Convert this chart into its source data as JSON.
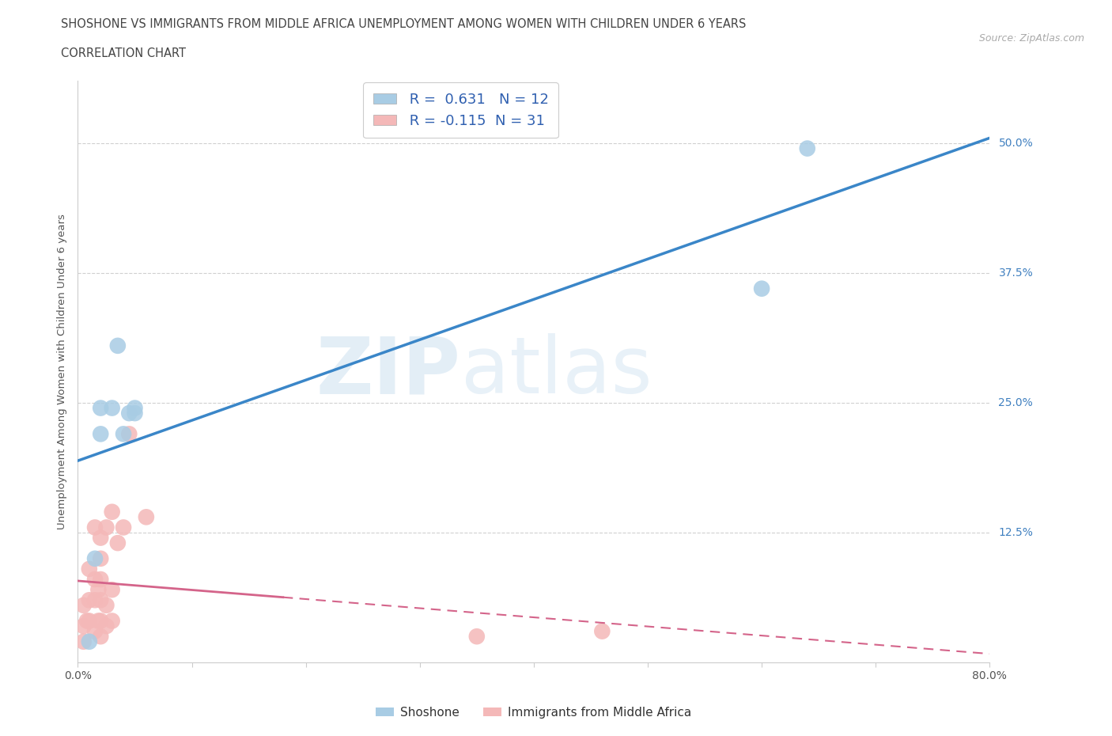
{
  "title_line1": "SHOSHONE VS IMMIGRANTS FROM MIDDLE AFRICA UNEMPLOYMENT AMONG WOMEN WITH CHILDREN UNDER 6 YEARS",
  "title_line2": "CORRELATION CHART",
  "source": "Source: ZipAtlas.com",
  "ylabel": "Unemployment Among Women with Children Under 6 years",
  "xlim": [
    0.0,
    0.8
  ],
  "ylim": [
    0.0,
    0.56
  ],
  "yticks": [
    0.0,
    0.125,
    0.25,
    0.375,
    0.5
  ],
  "ytick_labels": [
    "",
    "12.5%",
    "25.0%",
    "37.5%",
    "50.0%"
  ],
  "xticks": [
    0.0,
    0.1,
    0.2,
    0.3,
    0.4,
    0.5,
    0.6,
    0.7,
    0.8
  ],
  "xtick_labels": [
    "0.0%",
    "",
    "",
    "",
    "",
    "",
    "",
    "",
    "80.0%"
  ],
  "watermark_zip": "ZIP",
  "watermark_atlas": "atlas",
  "shoshone_color": "#a8cce4",
  "immigrants_color": "#f4b8b8",
  "shoshone_R": 0.631,
  "shoshone_N": 12,
  "immigrants_R": -0.115,
  "immigrants_N": 31,
  "shoshone_line_color": "#3a86c8",
  "immigrants_line_color": "#d4648a",
  "shoshone_points_x": [
    0.01,
    0.015,
    0.02,
    0.02,
    0.03,
    0.035,
    0.04,
    0.045,
    0.05,
    0.05,
    0.6,
    0.64
  ],
  "shoshone_points_y": [
    0.02,
    0.1,
    0.22,
    0.245,
    0.245,
    0.305,
    0.22,
    0.24,
    0.24,
    0.245,
    0.36,
    0.495
  ],
  "immigrants_points_x": [
    0.005,
    0.005,
    0.005,
    0.008,
    0.01,
    0.01,
    0.01,
    0.015,
    0.015,
    0.015,
    0.015,
    0.018,
    0.018,
    0.02,
    0.02,
    0.02,
    0.02,
    0.02,
    0.02,
    0.025,
    0.025,
    0.025,
    0.03,
    0.03,
    0.03,
    0.035,
    0.04,
    0.045,
    0.06,
    0.35,
    0.46
  ],
  "immigrants_points_y": [
    0.02,
    0.035,
    0.055,
    0.04,
    0.04,
    0.06,
    0.09,
    0.03,
    0.06,
    0.08,
    0.13,
    0.04,
    0.07,
    0.025,
    0.04,
    0.06,
    0.08,
    0.1,
    0.12,
    0.035,
    0.055,
    0.13,
    0.04,
    0.07,
    0.145,
    0.115,
    0.13,
    0.22,
    0.14,
    0.025,
    0.03
  ],
  "background_color": "#ffffff",
  "grid_color": "#d0d0d0",
  "title_color": "#444444",
  "axis_label_color": "#555555",
  "ytick_color": "#4080c0",
  "legend_label_color": "#3060b0"
}
